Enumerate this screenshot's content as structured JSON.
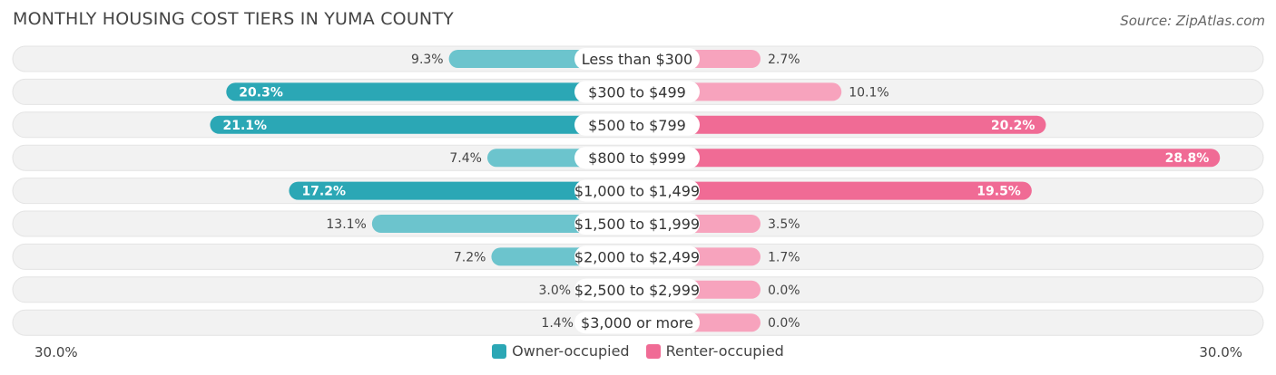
{
  "title": "MONTHLY HOUSING COST TIERS IN YUMA COUNTY",
  "source": "Source: ZipAtlas.com",
  "colors": {
    "owner_dark": "#2ba7b5",
    "owner_light": "#6cc4cd",
    "renter_dark": "#f06b95",
    "renter_light": "#f7a3bd",
    "row_bg": "#f2f2f2"
  },
  "chart_data": {
    "type": "bar",
    "orientation": "horizontal-diverging",
    "categories": [
      "Less than $300",
      "$300 to $499",
      "$500 to $799",
      "$800 to $999",
      "$1,000 to $1,499",
      "$1,500 to $1,999",
      "$2,000 to $2,499",
      "$2,500 to $2,999",
      "$3,000 or more"
    ],
    "series": [
      {
        "name": "Owner-occupied",
        "values": [
          9.3,
          20.3,
          21.1,
          7.4,
          17.2,
          13.1,
          7.2,
          3.0,
          1.4
        ],
        "labels": [
          "9.3%",
          "20.3%",
          "21.1%",
          "7.4%",
          "17.2%",
          "13.1%",
          "7.2%",
          "3.0%",
          "1.4%"
        ]
      },
      {
        "name": "Renter-occupied",
        "values": [
          2.7,
          10.1,
          20.2,
          28.8,
          19.5,
          3.5,
          1.7,
          0.0,
          0.0
        ],
        "labels": [
          "2.7%",
          "10.1%",
          "20.2%",
          "28.8%",
          "19.5%",
          "3.5%",
          "1.7%",
          "0.0%",
          "0.0%"
        ]
      }
    ],
    "xlim": [
      -30,
      30
    ],
    "axis_min_label": "30.0%",
    "axis_max_label": "30.0%",
    "legend_position": "bottom-center"
  }
}
